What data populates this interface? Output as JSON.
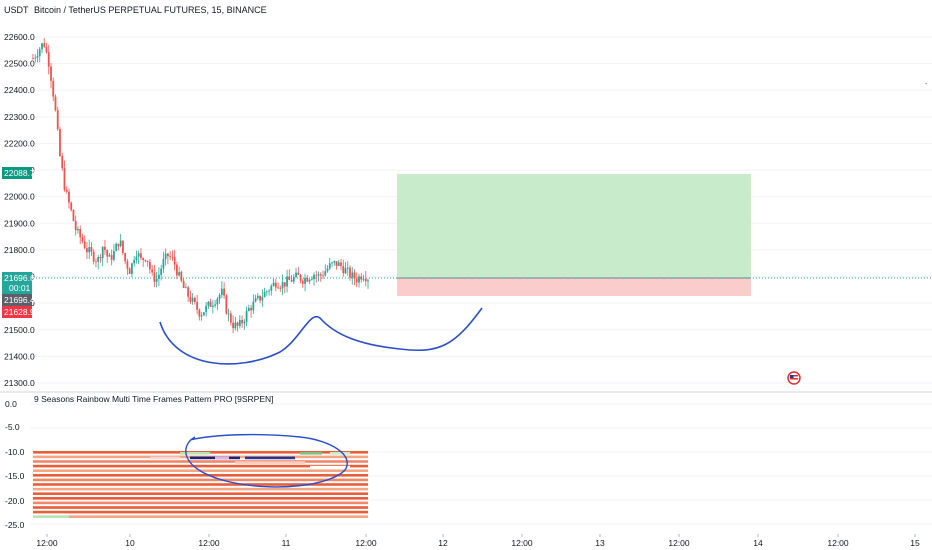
{
  "header": {
    "currency": "USDT",
    "symbol_title": "Bitcoin / TetherUS PERPETUAL FUTURES, 15, BINANCE"
  },
  "indicator": {
    "title": "9 Seasons Rainbow Multi Time Frames Pattern PRO [9SRPEN]"
  },
  "price_axis": {
    "ticks": [
      "22600.0",
      "22500.0",
      "22400.0",
      "22300.0",
      "22200.0",
      "22100.0",
      "22000.0",
      "21900.0",
      "21800.0",
      "21700.0",
      "21600.0",
      "21500.0",
      "21400.0",
      "21300.0"
    ],
    "tick_values": [
      22600,
      22500,
      22400,
      22300,
      22200,
      22100,
      22000,
      21900,
      21800,
      21700,
      21600,
      21500,
      21400,
      21300
    ]
  },
  "price_labels": {
    "target": "22088.7",
    "last_price": "21696.6",
    "countdown": "00:01",
    "entry": "21696.4",
    "stop": "21628.9"
  },
  "indicator_axis": {
    "ticks": [
      "0.0",
      "-5.0",
      "-10.0",
      "-15.0",
      "-20.0",
      "-25.0"
    ]
  },
  "time_axis": {
    "ticks": [
      "12:00",
      "10",
      "12:00",
      "11",
      "12:00",
      "12",
      "12:00",
      "13",
      "12:00",
      "14",
      "12:00",
      "15"
    ]
  },
  "colors": {
    "up": "#26a69a",
    "down": "#ef5350",
    "profit_zone": "#c8ebcb",
    "loss_zone": "#fbcccc",
    "drawing": "#2a4fc8",
    "target_label": "#089981",
    "last_label": "#26a69a",
    "entry_label": "#5d606b",
    "stop_label": "#f23645"
  },
  "icons": {
    "flag": "us-flag-icon"
  },
  "chart_data": {
    "type": "candlestick",
    "title": "Bitcoin / TetherUS PERPETUAL FUTURES, 15, BINANCE",
    "ylim": [
      21300,
      22650
    ],
    "x_ticks": [
      "12:00",
      "10",
      "12:00",
      "11",
      "12:00",
      "12",
      "12:00",
      "13",
      "12:00",
      "14",
      "12:00",
      "15"
    ],
    "price_path": [
      22520,
      22550,
      22580,
      22500,
      22350,
      22150,
      22020,
      21950,
      21870,
      21840,
      21800,
      21780,
      21760,
      21820,
      21760,
      21790,
      21840,
      21760,
      21720,
      21800,
      21760,
      21780,
      21700,
      21690,
      21750,
      21780,
      21760,
      21700,
      21650,
      21620,
      21590,
      21560,
      21580,
      21600,
      21620,
      21640,
      21560,
      21520,
      21510,
      21540,
      21580,
      21600,
      21620,
      21640,
      21660,
      21680,
      21670,
      21680,
      21690,
      21700,
      21690,
      21700,
      21710,
      21700,
      21720,
      21740,
      21750,
      21740,
      21720,
      21700,
      21690,
      21710,
      21696
    ],
    "position": {
      "target": 22088.7,
      "entry": 21696.4,
      "stop": 21628.9
    },
    "indicator_ylim": [
      -27,
      2
    ],
    "indicator_rows": 15
  }
}
